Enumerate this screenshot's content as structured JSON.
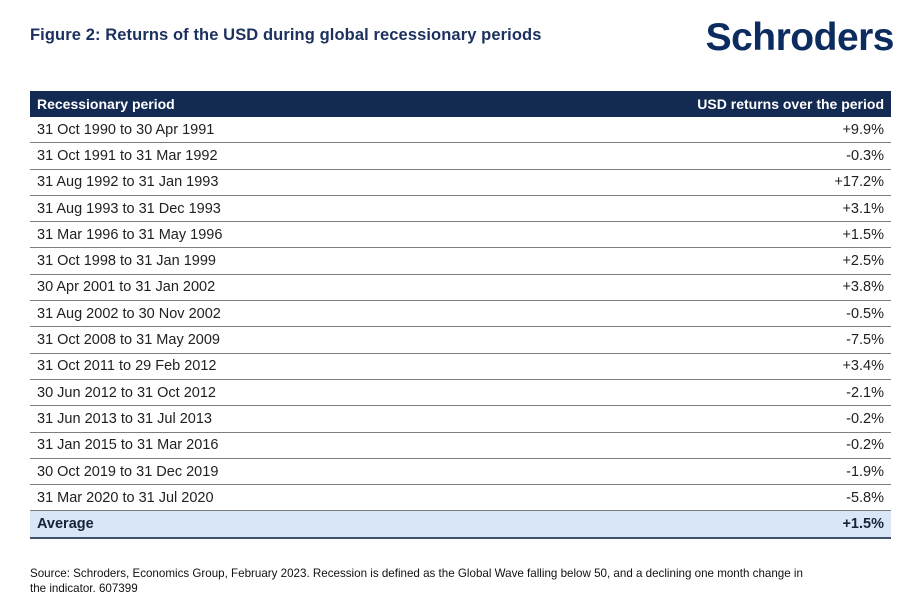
{
  "title": "Figure 2: Returns of the USD during global recessionary periods",
  "logo_text": "Schroders",
  "colors": {
    "brand_navy": "#0c2c60",
    "title_navy": "#1d3160",
    "header_bg": "#132a52",
    "header_text": "#ffffff",
    "row_border": "#7e7e7e",
    "average_bg": "#d9e6f7",
    "average_border": "#41516b",
    "body_text": "#212121"
  },
  "table": {
    "headers": {
      "period": "Recessionary period",
      "value": "USD returns over the period"
    },
    "rows": [
      {
        "period": "31 Oct 1990 to 30 Apr 1991",
        "value": "+9.9%"
      },
      {
        "period": "31 Oct 1991 to 31 Mar 1992",
        "value": "-0.3%"
      },
      {
        "period": "31 Aug 1992 to 31 Jan 1993",
        "value": "+17.2%"
      },
      {
        "period": "31 Aug 1993 to 31 Dec 1993",
        "value": "+3.1%"
      },
      {
        "period": "31 Mar 1996 to 31 May 1996",
        "value": "+1.5%"
      },
      {
        "period": "31 Oct 1998 to 31 Jan 1999",
        "value": "+2.5%"
      },
      {
        "period": "30 Apr 2001 to 31 Jan 2002",
        "value": "+3.8%"
      },
      {
        "period": "31 Aug 2002 to 30 Nov 2002",
        "value": "-0.5%"
      },
      {
        "period": "31 Oct 2008 to 31 May 2009",
        "value": "-7.5%"
      },
      {
        "period": "31 Oct 2011 to 29 Feb 2012",
        "value": "+3.4%"
      },
      {
        "period": "30 Jun 2012 to 31 Oct 2012",
        "value": "-2.1%"
      },
      {
        "period": "31 Jun 2013 to 31 Jul 2013",
        "value": "-0.2%"
      },
      {
        "period": "31 Jan 2015 to 31 Mar 2016",
        "value": "-0.2%"
      },
      {
        "period": "30 Oct 2019 to 31 Dec 2019",
        "value": "-1.9%"
      },
      {
        "period": "31 Mar 2020 to 31 Jul 2020",
        "value": "-5.8%"
      }
    ],
    "average_row": {
      "period": "Average",
      "value": "+1.5%"
    }
  },
  "source_lines": [
    "Source: Schroders, Economics Group, February 2023. Recession is defined as the Global Wave falling below 50, and a declining one month change in",
    "the indicator. 607399"
  ],
  "chart_data": {
    "type": "table",
    "title": "Figure 2: Returns of the USD during global recessionary periods",
    "columns": [
      "Recessionary period",
      "USD returns over the period"
    ],
    "rows": [
      [
        "31 Oct 1990 to 30 Apr 1991",
        "+9.9%"
      ],
      [
        "31 Oct 1991 to 31 Mar 1992",
        "-0.3%"
      ],
      [
        "31 Aug 1992 to 31 Jan 1993",
        "+17.2%"
      ],
      [
        "31 Aug 1993 to 31 Dec 1993",
        "+3.1%"
      ],
      [
        "31 Mar 1996 to 31 May 1996",
        "+1.5%"
      ],
      [
        "31 Oct 1998 to 31 Jan 1999",
        "+2.5%"
      ],
      [
        "30 Apr 2001 to 31 Jan 2002",
        "+3.8%"
      ],
      [
        "31 Aug 2002 to 30 Nov 2002",
        "-0.5%"
      ],
      [
        "31 Oct 2008 to 31 May 2009",
        "-7.5%"
      ],
      [
        "31 Oct 2011 to 29 Feb 2012",
        "+3.4%"
      ],
      [
        "30 Jun 2012 to 31 Oct 2012",
        "-2.1%"
      ],
      [
        "31 Jun 2013 to 31 Jul 2013",
        "-0.2%"
      ],
      [
        "31 Jan 2015 to 31 Mar 2016",
        "-0.2%"
      ],
      [
        "30 Oct 2019 to 31 Dec 2019",
        "-1.9%"
      ],
      [
        "31 Mar 2020 to 31 Jul 2020",
        "-5.8%"
      ]
    ],
    "values_numeric_pct": [
      9.9,
      -0.3,
      17.2,
      3.1,
      1.5,
      2.5,
      3.8,
      -0.5,
      -7.5,
      3.4,
      -2.1,
      -0.2,
      -0.2,
      -1.9,
      -5.8
    ],
    "average_pct": 1.5
  }
}
